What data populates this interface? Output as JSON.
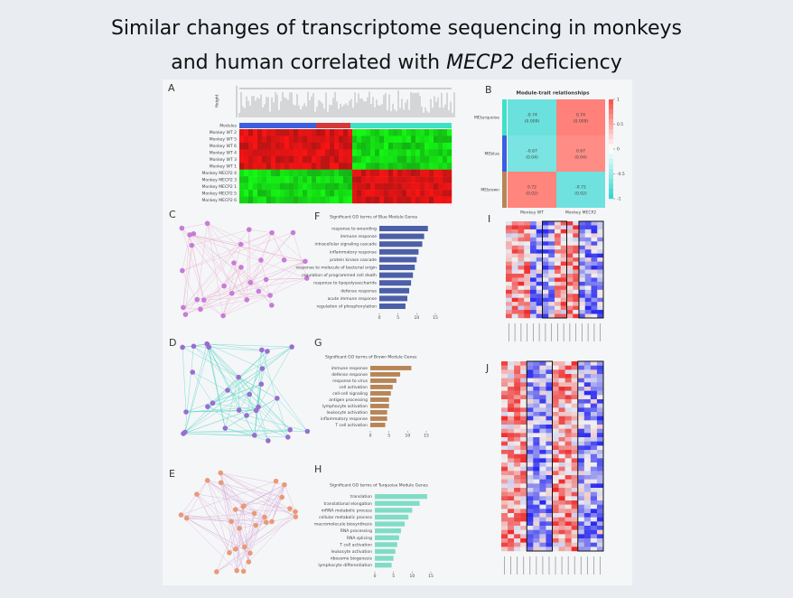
{
  "title": {
    "line1": "Similar changes of transcriptome sequencing in monkeys",
    "line2_prefix": "and human correlated with ",
    "line2_gene": "MECP2",
    "line2_suffix": " deficiency"
  },
  "panel_labels": [
    "A",
    "B",
    "C",
    "D",
    "E",
    "F",
    "G",
    "H",
    "I",
    "J"
  ],
  "panel_a": {
    "y_axis_label": "Height",
    "module_label": "Modules",
    "samples": [
      "Monkey WT 2",
      "Monkey WT 5",
      "Monkey WT 6",
      "Monkey WT 4",
      "Monkey WT 3",
      "Monkey WT 1",
      "Monkey MECP2 4",
      "Monkey MECP2 3",
      "Monkey MECP2 1",
      "Monkey MECP2 5",
      "Monkey MECP2 6"
    ]
  },
  "panel_b": {
    "title": "Module-trait relationships",
    "rows": [
      "MEturquoise",
      "MEblue",
      "MEbrown"
    ],
    "columns": [
      "Monkey WT",
      "Monkey MECP2"
    ],
    "correlations": [
      [
        -0.74,
        0.74
      ],
      [
        -0.67,
        0.67
      ],
      [
        0.72,
        -0.72
      ]
    ],
    "p_values": [
      [
        0.009,
        0.009
      ],
      [
        0.04,
        0.04
      ],
      [
        0.02,
        0.02
      ]
    ],
    "p_value_labels": [
      [
        "(0.009)",
        "(0.009)"
      ],
      [
        "(0.04)",
        "(0.04)"
      ],
      [
        "(0.02)",
        "(0.02)"
      ]
    ],
    "scale_ticks": [
      1,
      0.5,
      0,
      -0.5,
      -1
    ],
    "scale_lim": [
      -1,
      1
    ]
  },
  "panel_f": {
    "title": "Significant GO terms of Blue Module Genes",
    "color": "#4c5fa8",
    "xlim": [
      0,
      15
    ],
    "xticks": [
      0,
      5,
      10,
      15
    ],
    "terms": [
      "response to wounding",
      "immune response",
      "intracellular signaling cascade",
      "inflammatory response",
      "protein kinase cascade",
      "response to molecule of bacterial origin",
      "regulation of programmed cell death",
      "response to lipopolysaccharide",
      "defense response",
      "acute immune response",
      "regulation of phosphorylation"
    ],
    "values": [
      13,
      12,
      11.5,
      10.5,
      10,
      9.5,
      9,
      8.5,
      8,
      7.5,
      7
    ]
  },
  "panel_g": {
    "title": "Significant GO terms of Brown Module Genes",
    "color": "#b88556",
    "xlim": [
      0,
      15
    ],
    "xticks": [
      0,
      5,
      10,
      15
    ],
    "terms": [
      "immune response",
      "defense response",
      "response to virus",
      "cell activation",
      "cell-cell signaling",
      "antigen processing",
      "lymphocyte activation",
      "leukocyte activation",
      "inflammatory response",
      "T cell activation"
    ],
    "values": [
      11,
      8,
      7,
      6,
      5.5,
      5,
      5,
      4.5,
      4.5,
      4
    ]
  },
  "panel_h": {
    "title": "Significant GO terms of Turquoise Module Genes",
    "color": "#80dcc6",
    "xlim": [
      0,
      15
    ],
    "xticks": [
      0,
      5,
      10,
      15
    ],
    "terms": [
      "translation",
      "translational elongation",
      "mRNA metabolic process",
      "cellular metabolic process",
      "macromolecule biosynthesis",
      "RNA processing",
      "RNA splicing",
      "T cell activation",
      "leukocyte activation",
      "ribosome biogenesis",
      "lymphocyte differentiation"
    ],
    "values": [
      14,
      12,
      10,
      9,
      8,
      7,
      6.5,
      6,
      5.5,
      5,
      4.5
    ]
  }
}
